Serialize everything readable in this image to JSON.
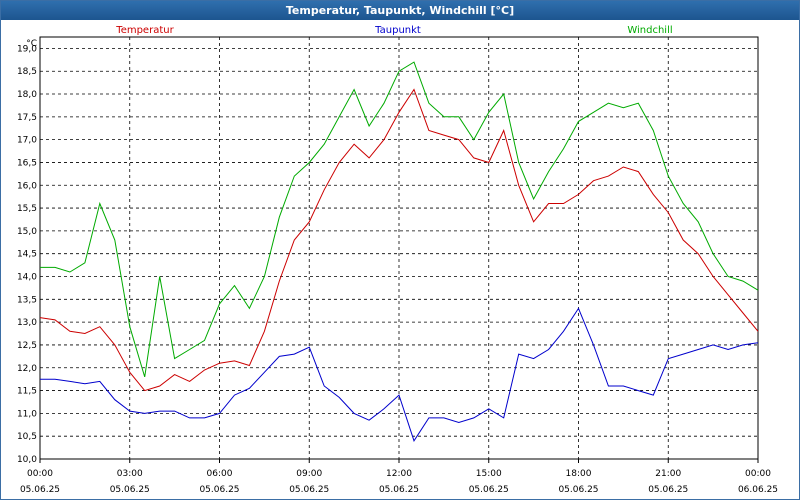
{
  "window": {
    "title": "Temperatur, Taupunkt, Windchill [°C]"
  },
  "chart_data": {
    "type": "line",
    "title": "Temperatur, Taupunkt, Windchill [°C]",
    "ylabel": "°C",
    "ylim": [
      10.0,
      19.25
    ],
    "y_ticks": [
      "10,0",
      "10,5",
      "11,0",
      "11,5",
      "12,0",
      "12,5",
      "13,0",
      "13,5",
      "14,0",
      "14,5",
      "15,0",
      "15,5",
      "16,0",
      "16,5",
      "17,0",
      "17,5",
      "18,0",
      "18,5",
      "19,0"
    ],
    "x_ticks": [
      {
        "time": "00:00",
        "date": "05.06.25"
      },
      {
        "time": "03:00",
        "date": "05.06.25"
      },
      {
        "time": "06:00",
        "date": "05.06.25"
      },
      {
        "time": "09:00",
        "date": "05.06.25"
      },
      {
        "time": "12:00",
        "date": "05.06.25"
      },
      {
        "time": "15:00",
        "date": "05.06.25"
      },
      {
        "time": "18:00",
        "date": "05.06.25"
      },
      {
        "time": "21:00",
        "date": "05.06.25"
      },
      {
        "time": "00:00",
        "date": "06.06.25"
      }
    ],
    "grid": true,
    "legend_position": "top",
    "x_hours": [
      0,
      0.5,
      1,
      1.5,
      2,
      2.5,
      3,
      3.5,
      4,
      4.5,
      5,
      5.5,
      6,
      6.5,
      7,
      7.5,
      8,
      8.5,
      9,
      9.5,
      10,
      10.5,
      11,
      11.5,
      12,
      12.5,
      13,
      13.5,
      14,
      14.5,
      15,
      15.5,
      16,
      16.5,
      17,
      17.5,
      18,
      18.5,
      19,
      19.5,
      20,
      20.5,
      21,
      21.5,
      22,
      22.5,
      23,
      23.5,
      24
    ],
    "series": [
      {
        "name": "Temperatur",
        "color": "#cc0000",
        "values": [
          13.1,
          13.05,
          12.8,
          12.75,
          12.9,
          12.5,
          11.9,
          11.5,
          11.6,
          11.85,
          11.7,
          11.95,
          12.1,
          12.15,
          12.05,
          12.8,
          13.9,
          14.8,
          15.2,
          15.9,
          16.5,
          16.9,
          16.6,
          17.0,
          17.6,
          18.1,
          17.2,
          17.1,
          17.0,
          16.6,
          16.5,
          17.2,
          16.0,
          15.2,
          15.6,
          15.6,
          15.8,
          16.1,
          16.2,
          16.4,
          16.3,
          15.8,
          15.4,
          14.8,
          14.5,
          14.0,
          13.6,
          13.2,
          12.8
        ]
      },
      {
        "name": "Taupunkt",
        "color": "#0000cc",
        "values": [
          11.75,
          11.75,
          11.7,
          11.65,
          11.7,
          11.3,
          11.05,
          11.0,
          11.05,
          11.05,
          10.9,
          10.9,
          11.0,
          11.4,
          11.55,
          11.9,
          12.25,
          12.3,
          12.45,
          11.6,
          11.35,
          11.0,
          10.85,
          11.1,
          11.4,
          10.4,
          10.9,
          10.9,
          10.8,
          10.9,
          11.1,
          10.9,
          12.3,
          12.2,
          12.4,
          12.8,
          13.3,
          12.5,
          11.6,
          11.6,
          11.5,
          11.4,
          12.2,
          12.3,
          12.4,
          12.5,
          12.4,
          12.5,
          12.55
        ]
      },
      {
        "name": "Windchill",
        "color": "#00aa00",
        "values": [
          14.2,
          14.2,
          14.1,
          14.3,
          15.6,
          14.8,
          12.9,
          11.8,
          14.0,
          12.2,
          12.4,
          12.6,
          13.4,
          13.8,
          13.3,
          14.0,
          15.3,
          16.2,
          16.5,
          16.9,
          17.5,
          18.1,
          17.3,
          17.8,
          18.5,
          18.7,
          17.8,
          17.5,
          17.5,
          17.0,
          17.6,
          18.0,
          16.5,
          15.7,
          16.3,
          16.8,
          17.4,
          17.6,
          17.8,
          17.7,
          17.8,
          17.2,
          16.2,
          15.6,
          15.2,
          14.5,
          14.0,
          13.9,
          13.7
        ]
      }
    ]
  }
}
